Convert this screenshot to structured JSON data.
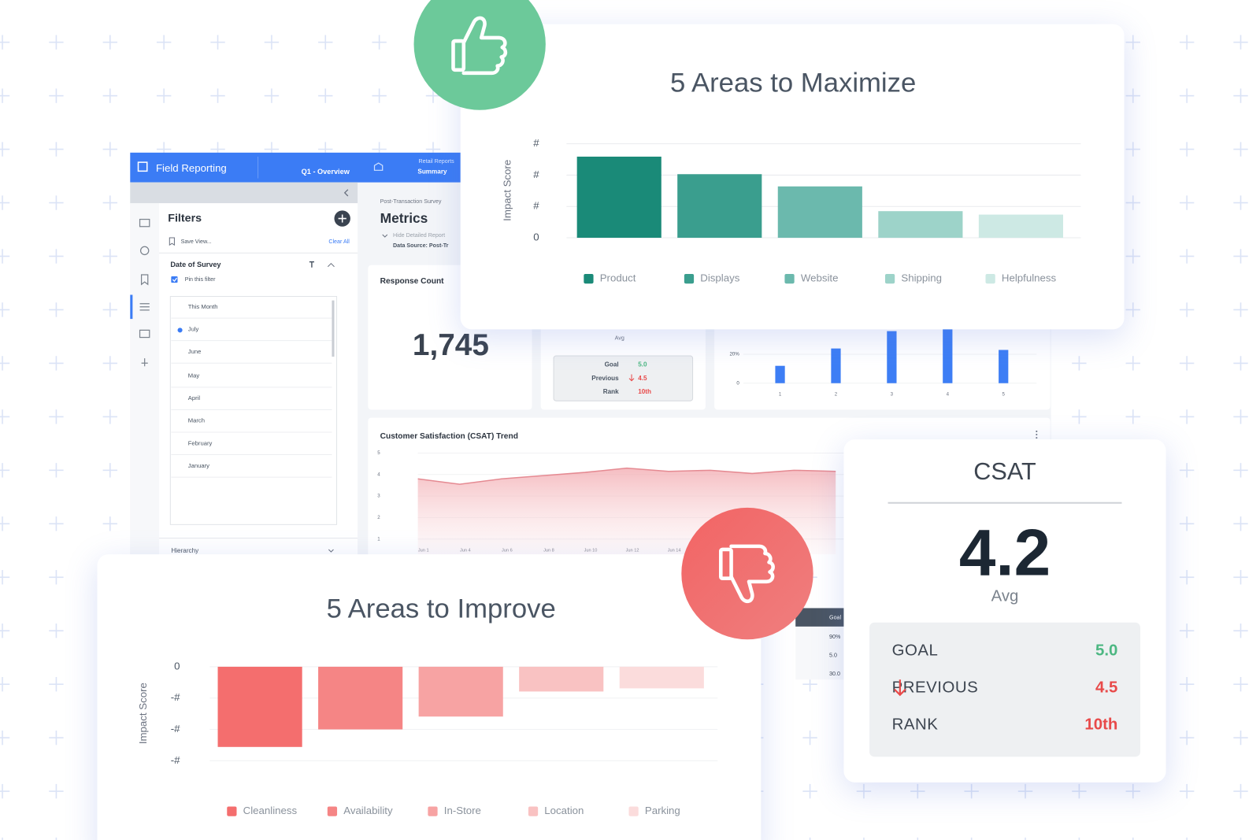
{
  "dashboard": {
    "app_title": "Field Reporting",
    "tab": "Q1 - Overview",
    "tab2_top": "Retail Reports",
    "tab2": "Summary",
    "filters": {
      "title": "Filters",
      "save_view": "Save View...",
      "clear_all": "Clear All",
      "section": "Date of Survey",
      "pin": "Pin this filter",
      "options": [
        "This Month",
        "July",
        "June",
        "May",
        "April",
        "March",
        "February",
        "January"
      ],
      "hierarchy": "Hierarchy"
    },
    "metrics": {
      "survey": "Post-Transaction Survey",
      "title": "Metrics",
      "hide": "Hide Detailed Report",
      "source": "Data Source: Post-Tr"
    },
    "response_count": {
      "label": "Response Count",
      "value": "1,745"
    },
    "avg_card": {
      "avg": "Avg",
      "rows": [
        [
          "Goal",
          "5.0"
        ],
        [
          "Previous",
          "4.5"
        ],
        [
          "Rank",
          "10th"
        ]
      ]
    },
    "trend_title": "Customer Satisfaction (CSAT) Trend",
    "table": {
      "header": "Goal",
      "cells": [
        "90%",
        "5.0",
        "30.0"
      ]
    }
  },
  "csat_card": {
    "title": "CSAT",
    "value": "4.2",
    "avg": "Avg",
    "rows": [
      {
        "label": "GOAL",
        "value": "5.0"
      },
      {
        "label": "PREVIOUS",
        "value": "4.5"
      },
      {
        "label": "RANK",
        "value": "10th"
      }
    ]
  },
  "chart_data": [
    {
      "type": "bar",
      "title": "5 Areas to Maximize",
      "y_label": "Impact Score",
      "categories": [
        "Product",
        "Displays",
        "Website",
        "Shipping",
        "Helpfulness"
      ],
      "values": [
        2.59,
        2.03,
        1.64,
        0.85,
        0.74
      ],
      "colors": [
        "#1a8a78",
        "#3a9e8e",
        "#6bb9ad",
        "#9dd3c9",
        "#cde9e4"
      ],
      "ylim": [
        0,
        3
      ],
      "yticks": [
        0,
        {
          "value": 1,
          "label": "#"
        },
        {
          "value": 2,
          "label": "#"
        },
        {
          "value": 3,
          "label": "#"
        }
      ],
      "grid": true,
      "legend": "bottom"
    },
    {
      "type": "bar",
      "title": "5 Areas to Improve",
      "y_label": "Impact Score",
      "categories": [
        "Cleanliness",
        "Availability",
        "In-Store",
        "Location",
        "Parking"
      ],
      "values": [
        -2.56,
        -2.0,
        -1.59,
        -0.79,
        -0.69
      ],
      "colors": [
        "#f46e6e",
        "#f58585",
        "#f7a3a3",
        "#f9c2c2",
        "#fbdcdc"
      ],
      "ylim": [
        -3,
        0
      ],
      "yticks": [
        0,
        {
          "value": -1,
          "label": "-#"
        },
        {
          "value": -2,
          "label": "-#"
        },
        {
          "value": -3,
          "label": "-#"
        }
      ],
      "grid": true,
      "legend": "bottom"
    },
    {
      "type": "bar",
      "categories": [
        "1",
        "2",
        "3",
        "4",
        "5"
      ],
      "values": [
        12,
        24,
        36,
        38,
        23
      ],
      "color": "#3d7ef5",
      "ylim": [
        0,
        40
      ],
      "yticks": [
        0,
        {
          "value": 20,
          "label": "20%"
        }
      ],
      "grid": true
    },
    {
      "type": "area",
      "categories": [
        "Jun 1",
        "Jun 4",
        "Jun 6",
        "Jun 8",
        "Jun 10",
        "Jun 12",
        "Jun 14",
        null,
        null,
        null,
        null
      ],
      "values": [
        3.8,
        3.55,
        3.8,
        3.95,
        4.1,
        4.3,
        4.15,
        4.2,
        4.05,
        4.2,
        4.15
      ],
      "color": "#e58a92",
      "ylim": [
        1,
        5
      ],
      "yticks": [
        1,
        2,
        3,
        4,
        5
      ],
      "grid": true
    }
  ]
}
